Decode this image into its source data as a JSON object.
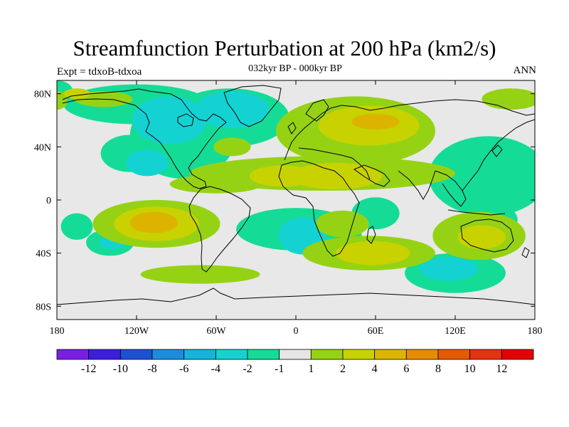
{
  "title": "Streamfunction Perturbation at 200 hPa (km2/s)",
  "subtitle": "032kyr BP - 000kyr BP",
  "left_label": "Expt = tdxoB-tdxoa",
  "right_label": "ANN",
  "map": {
    "projection": "cylindrical equidistant",
    "lon_range": [
      -180,
      180
    ],
    "lat_range": [
      -90,
      90
    ],
    "background_color": "#e8e8e8",
    "x_ticks": [
      {
        "lon": -180,
        "label": "180"
      },
      {
        "lon": -120,
        "label": "120W"
      },
      {
        "lon": -60,
        "label": "60W"
      },
      {
        "lon": 0,
        "label": "0"
      },
      {
        "lon": 60,
        "label": "60E"
      },
      {
        "lon": 120,
        "label": "120E"
      },
      {
        "lon": 180,
        "label": "180"
      }
    ],
    "y_ticks": [
      {
        "lat": 80,
        "label": "80N"
      },
      {
        "lat": 40,
        "label": "40N"
      },
      {
        "lat": 0,
        "label": "0"
      },
      {
        "lat": -40,
        "label": "40S"
      },
      {
        "lat": -80,
        "label": "80S"
      }
    ]
  },
  "colorbar": {
    "colors": [
      "#7a1ee6",
      "#3c1edc",
      "#1e50d2",
      "#1e8cdc",
      "#14b4dc",
      "#14d2d2",
      "#14dc96",
      "#e6e6e6",
      "#96d214",
      "#c8d200",
      "#dcb400",
      "#e68c00",
      "#e65a00",
      "#e63214",
      "#e60000"
    ],
    "labels": [
      "-12",
      "-10",
      "-8",
      "-6",
      "-4",
      "-2",
      "-1",
      "1",
      "2",
      "4",
      "6",
      "8",
      "10",
      "12"
    ]
  },
  "contours": [
    {
      "level": "-1",
      "color": "#14dc96",
      "lon": -180,
      "lat": 82,
      "rx": 12,
      "ry": 8
    },
    {
      "level": "-1",
      "color": "#14dc96",
      "lon": -120,
      "lat": 72,
      "rx": 55,
      "ry": 15
    },
    {
      "level": "-1",
      "color": "#14dc96",
      "lon": -125,
      "lat": 35,
      "rx": 22,
      "ry": 14
    },
    {
      "level": "-1",
      "color": "#14dc96",
      "lon": -85,
      "lat": 48,
      "rx": 40,
      "ry": 32
    },
    {
      "level": "-1",
      "color": "#14dc96",
      "lon": -50,
      "lat": 62,
      "rx": 45,
      "ry": 22
    },
    {
      "level": "-1",
      "color": "#14dc96",
      "lon": 145,
      "lat": 18,
      "rx": 45,
      "ry": 30
    },
    {
      "level": "-1",
      "color": "#14dc96",
      "lon": 60,
      "lat": -10,
      "rx": 18,
      "ry": 12
    },
    {
      "level": "-1",
      "color": "#14dc96",
      "lon": 0,
      "lat": -22,
      "rx": 45,
      "ry": 16
    },
    {
      "level": "-1",
      "color": "#14dc96",
      "lon": 28,
      "lat": -30,
      "rx": 22,
      "ry": 20
    },
    {
      "level": "-1",
      "color": "#14dc96",
      "lon": -140,
      "lat": -32,
      "rx": 18,
      "ry": 10
    },
    {
      "level": "-1",
      "color": "#14dc96",
      "lon": -165,
      "lat": -20,
      "rx": 12,
      "ry": 10
    },
    {
      "level": "-1",
      "color": "#14dc96",
      "lon": 120,
      "lat": -55,
      "rx": 38,
      "ry": 15
    },
    {
      "level": "-1",
      "color": "#14dc96",
      "lon": 155,
      "lat": -15,
      "rx": 12,
      "ry": 10
    },
    {
      "level": "-2",
      "color": "#14d2d2",
      "lon": -95,
      "lat": 60,
      "rx": 28,
      "ry": 18
    },
    {
      "level": "-2",
      "color": "#14d2d2",
      "lon": -48,
      "lat": 68,
      "rx": 28,
      "ry": 14
    },
    {
      "level": "-2",
      "color": "#14d2d2",
      "lon": -112,
      "lat": 28,
      "rx": 16,
      "ry": 10
    },
    {
      "level": "-2",
      "color": "#14d2d2",
      "lon": 5,
      "lat": -27,
      "rx": 18,
      "ry": 14
    },
    {
      "level": "-2",
      "color": "#14d2d2",
      "lon": 115,
      "lat": -52,
      "rx": 22,
      "ry": 9
    },
    {
      "level": "-2",
      "color": "#14d2d2",
      "lon": -138,
      "lat": -32,
      "rx": 10,
      "ry": 5
    },
    {
      "level": "1",
      "color": "#96d214",
      "lon": -145,
      "lat": 76,
      "rx": 22,
      "ry": 6
    },
    {
      "level": "1",
      "color": "#96d214",
      "lon": -180,
      "lat": 75,
      "rx": 8,
      "ry": 7
    },
    {
      "level": "1",
      "color": "#96d214",
      "lon": -48,
      "lat": 40,
      "rx": 14,
      "ry": 7
    },
    {
      "level": "1",
      "color": "#96d214",
      "lon": 45,
      "lat": 52,
      "rx": 60,
      "ry": 26
    },
    {
      "level": "1",
      "color": "#96d214",
      "lon": 20,
      "lat": 20,
      "rx": 100,
      "ry": 13
    },
    {
      "level": "1",
      "color": "#96d214",
      "lon": 162,
      "lat": 76,
      "rx": 22,
      "ry": 8
    },
    {
      "level": "1",
      "color": "#96d214",
      "lon": -60,
      "lat": 12,
      "rx": 35,
      "ry": 7
    },
    {
      "level": "1",
      "color": "#96d214",
      "lon": -105,
      "lat": -18,
      "rx": 48,
      "ry": 18
    },
    {
      "level": "1",
      "color": "#96d214",
      "lon": 55,
      "lat": -40,
      "rx": 50,
      "ry": 13
    },
    {
      "level": "1",
      "color": "#96d214",
      "lon": 138,
      "lat": -27,
      "rx": 35,
      "ry": 18
    },
    {
      "level": "1",
      "color": "#96d214",
      "lon": -72,
      "lat": -56,
      "rx": 45,
      "ry": 7
    },
    {
      "level": "1",
      "color": "#96d214",
      "lon": 35,
      "lat": -18,
      "rx": 20,
      "ry": 10
    },
    {
      "level": "2",
      "color": "#c8d200",
      "lon": 55,
      "lat": 56,
      "rx": 38,
      "ry": 15
    },
    {
      "level": "2",
      "color": "#c8d200",
      "lon": 30,
      "lat": 18,
      "rx": 35,
      "ry": 10
    },
    {
      "level": "2",
      "color": "#c8d200",
      "lon": -10,
      "lat": 18,
      "rx": 25,
      "ry": 8
    },
    {
      "level": "2",
      "color": "#c8d200",
      "lon": -105,
      "lat": -18,
      "rx": 32,
      "ry": 13
    },
    {
      "level": "2",
      "color": "#c8d200",
      "lon": 58,
      "lat": -40,
      "rx": 28,
      "ry": 9
    },
    {
      "level": "2",
      "color": "#c8d200",
      "lon": 140,
      "lat": -28,
      "rx": 18,
      "ry": 9
    },
    {
      "level": "2",
      "color": "#c8d200",
      "lon": -165,
      "lat": 80,
      "rx": 10,
      "ry": 4
    },
    {
      "level": "4",
      "color": "#dcb400",
      "lon": 60,
      "lat": 59,
      "rx": 18,
      "ry": 6
    },
    {
      "level": "4",
      "color": "#dcb400",
      "lon": -107,
      "lat": -17,
      "rx": 18,
      "ry": 8
    }
  ]
}
